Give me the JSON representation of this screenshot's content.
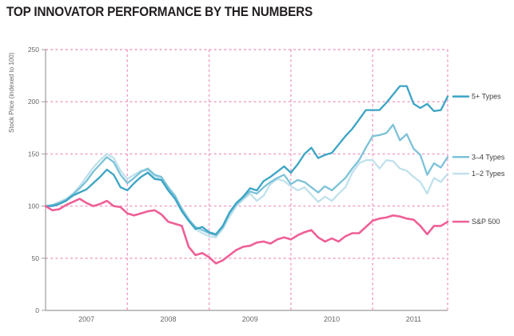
{
  "title": "TOP INNOVATOR PERFORMANCE BY THE NUMBERS",
  "colors": {
    "title_text": "#221e1f",
    "axis_line": "#9b9b9b",
    "tick_text": "#666666",
    "legend_text": "#3d3d3d",
    "gridline_pink": "#f19dc5",
    "series_5plus_teal": "#3ba4c4",
    "series_3to4_teal": "#7cc2d8",
    "series_1to2_teal": "#c0e1ec",
    "series_sp500_pink": "#ee5f97",
    "background": "#ffffff"
  },
  "chart_data": {
    "type": "line",
    "title": "TOP INNOVATOR PERFORMANCE BY THE NUMBERS",
    "xlabel": "",
    "ylabel": "Stock Price (indexed to 100)",
    "ylim": [
      0,
      250
    ],
    "yticks": [
      0,
      50,
      100,
      150,
      200,
      250
    ],
    "x_unit": "months, Jan 2007 - Dec 2011",
    "x_year_labels": [
      "2007",
      "2008",
      "2009",
      "2010",
      "2011"
    ],
    "grid": "dashed pink: horizontal at 50/100/150/200/250, vertical at year boundaries",
    "legend_position": "right of plot, aligned to each line end",
    "series": [
      {
        "name": "5+ Types",
        "color": "#3ba4c4",
        "values": [
          100,
          100,
          102,
          105,
          110,
          113,
          116,
          122,
          128,
          135,
          130,
          118,
          115,
          122,
          128,
          132,
          126,
          125,
          115,
          107,
          95,
          86,
          78,
          80,
          75,
          73,
          81,
          94,
          103,
          109,
          117,
          115,
          124,
          128,
          133,
          138,
          132,
          140,
          150,
          156,
          146,
          149,
          151,
          159,
          167,
          174,
          183,
          192,
          192,
          192,
          199,
          207,
          215,
          215,
          198,
          194,
          198,
          191,
          192,
          205
        ]
      },
      {
        "name": "3–4 Types",
        "color": "#7cc2d8",
        "values": [
          100,
          101,
          103,
          106,
          111,
          117,
          124,
          133,
          140,
          147,
          142,
          130,
          122,
          127,
          133,
          136,
          130,
          128,
          118,
          110,
          97,
          87,
          80,
          77,
          74,
          72,
          80,
          93,
          102,
          108,
          114,
          112,
          118,
          123,
          127,
          130,
          121,
          125,
          123,
          118,
          113,
          119,
          115,
          121,
          127,
          136,
          144,
          156,
          167,
          168,
          170,
          178,
          163,
          169,
          155,
          149,
          130,
          141,
          137,
          147
        ]
      },
      {
        "name": "1–2 Types",
        "color": "#c0e1ec",
        "values": [
          100,
          101,
          104,
          107,
          112,
          119,
          128,
          137,
          144,
          150,
          146,
          134,
          126,
          130,
          134,
          134,
          128,
          126,
          116,
          108,
          98,
          88,
          78,
          74,
          71,
          70,
          78,
          90,
          100,
          106,
          112,
          105,
          110,
          121,
          126,
          124,
          119,
          115,
          118,
          111,
          104,
          109,
          105,
          112,
          118,
          132,
          141,
          144,
          144,
          136,
          144,
          143,
          136,
          134,
          128,
          123,
          112,
          127,
          123,
          131
        ]
      },
      {
        "name": "S&P 500",
        "color": "#ee5f97",
        "values": [
          100,
          96,
          97,
          101,
          104,
          107,
          103,
          100,
          102,
          105,
          100,
          99,
          93,
          91,
          93,
          95,
          96,
          92,
          85,
          83,
          81,
          61,
          53,
          55,
          51,
          45,
          48,
          53,
          58,
          61,
          62,
          65,
          66,
          64,
          68,
          70,
          68,
          72,
          75,
          77,
          70,
          66,
          69,
          66,
          71,
          74,
          74,
          80,
          86,
          88,
          89,
          91,
          90,
          88,
          87,
          81,
          73,
          81,
          81,
          85
        ]
      }
    ]
  }
}
